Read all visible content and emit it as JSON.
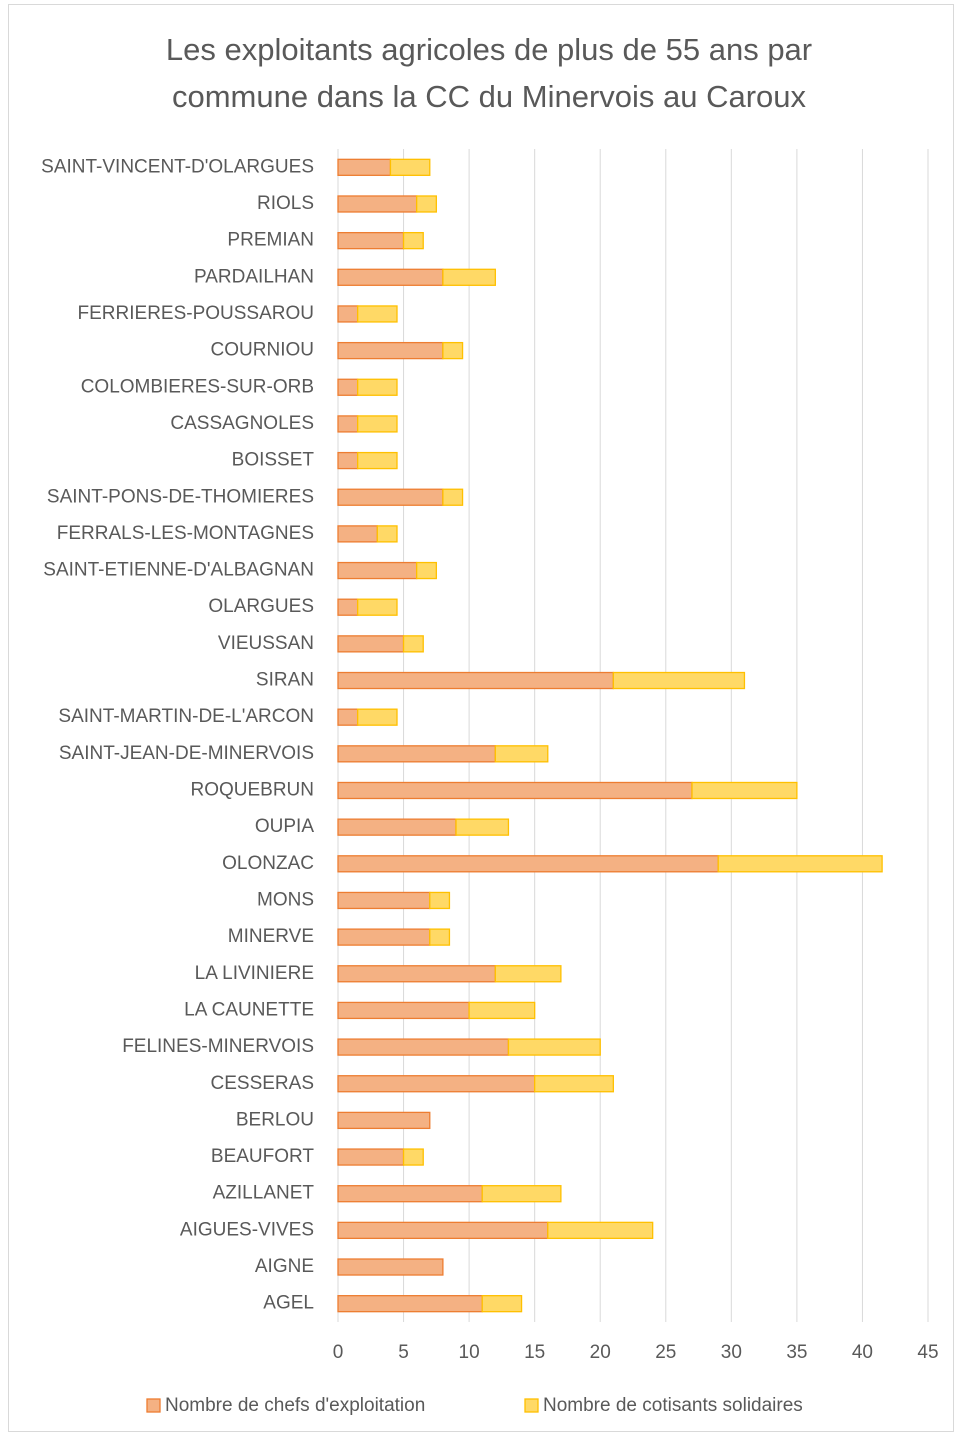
{
  "chart_data": {
    "type": "stacked-barh",
    "title": "Les exploitants agricoles de plus de 55 ans par commune dans la CC du Minervois au Caroux",
    "categories": [
      "SAINT-VINCENT-D'OLARGUES",
      "RIOLS",
      "PREMIAN",
      "PARDAILHAN",
      "FERRIERES-POUSSAROU",
      "COURNIOU",
      "COLOMBIERES-SUR-ORB",
      "CASSAGNOLES",
      "BOISSET",
      "SAINT-PONS-DE-THOMIERES",
      "FERRALS-LES-MONTAGNES",
      "SAINT-ETIENNE-D'ALBAGNAN",
      "OLARGUES",
      "VIEUSSAN",
      "SIRAN",
      "SAINT-MARTIN-DE-L'ARCON",
      "SAINT-JEAN-DE-MINERVOIS",
      "ROQUEBRUN",
      "OUPIA",
      "OLONZAC",
      "MONS",
      "MINERVE",
      "LA LIVINIERE",
      "LA CAUNETTE",
      "FELINES-MINERVOIS",
      "CESSERAS",
      "BERLOU",
      "BEAUFORT",
      "AZILLANET",
      "AIGUES-VIVES",
      "AIGNE",
      "AGEL"
    ],
    "series": [
      {
        "name": "Nombre de chefs d'exploitation",
        "color": "#f4b183",
        "stroke": "#ed7d31",
        "values": [
          4,
          6,
          5,
          8,
          1.5,
          8,
          1.5,
          1.5,
          1.5,
          8,
          3,
          6,
          1.5,
          5,
          21,
          1.5,
          12,
          27,
          9,
          29,
          7,
          7,
          12,
          10,
          13,
          15,
          7,
          5,
          11,
          16,
          8,
          11
        ]
      },
      {
        "name": "Nombre de cotisants solidaires",
        "color": "#ffd966",
        "stroke": "#ffc000",
        "values": [
          3,
          1.5,
          1.5,
          4,
          3,
          1.5,
          3,
          3,
          3,
          1.5,
          1.5,
          1.5,
          3,
          1.5,
          10,
          3,
          4,
          8,
          4,
          12.5,
          1.5,
          1.5,
          5,
          5,
          7,
          6,
          0,
          1.5,
          6,
          8,
          0,
          3
        ]
      }
    ],
    "xlim": [
      0,
      45
    ],
    "xticks": [
      0,
      5,
      10,
      15,
      20,
      25,
      30,
      35,
      40,
      45
    ],
    "grid": true,
    "legend": "bottom"
  }
}
